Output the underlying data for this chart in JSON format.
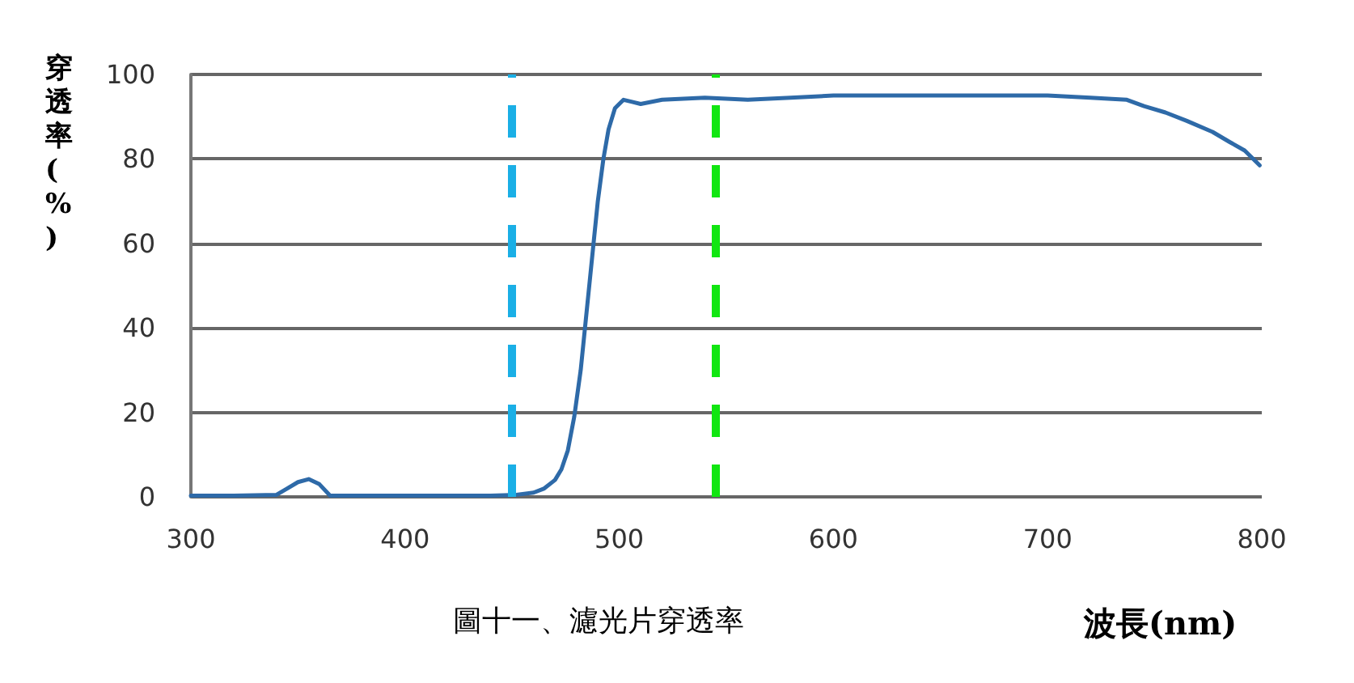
{
  "chart_data": {
    "type": "line",
    "xlabel": "波長(nm)",
    "ylabel": "穿透率(%)",
    "annotations": [
      "圖十一、濾光片穿透率"
    ],
    "series": [
      {
        "color": "#2e6aa8",
        "x": [
          300,
          320,
          340,
          345,
          350,
          355,
          360,
          365,
          380,
          400,
          420,
          440,
          452,
          460,
          465,
          470,
          473,
          476,
          479,
          482,
          484,
          486,
          488,
          490,
          492.6,
          495,
          498,
          502,
          506,
          510,
          520,
          540,
          560,
          580,
          600,
          620,
          640,
          660,
          680,
          700,
          720,
          730,
          737,
          745,
          755,
          765,
          777,
          785,
          792,
          799
        ],
        "values": [
          0.3,
          0.3,
          0.5,
          2,
          3.5,
          4.2,
          3,
          0.3,
          0.3,
          0.3,
          0.3,
          0.3,
          0.5,
          1,
          2,
          4,
          6.5,
          11,
          19,
          30,
          40,
          50,
          60,
          70,
          80,
          87,
          92,
          94,
          93.5,
          93,
          94,
          94.5,
          94,
          94.5,
          95,
          95,
          95,
          95,
          95,
          95,
          94.5,
          94.2,
          94,
          92.5,
          91,
          89,
          86.4,
          84,
          82,
          78.5
        ]
      }
    ],
    "xlim": [
      300,
      800
    ],
    "xticks": [
      300,
      400,
      500,
      600,
      700,
      800
    ],
    "ylim": [
      0,
      100
    ],
    "yticks": [
      0,
      20,
      40,
      60,
      80,
      100
    ],
    "grid": "y",
    "marker": "none",
    "line_style": "solid",
    "ref_lines": [
      {
        "axis": "x",
        "value": 450,
        "color": "#1aafe6",
        "line_style": "dashed"
      },
      {
        "axis": "x",
        "value": 545,
        "color": "#11e611",
        "line_style": "dashed"
      }
    ]
  }
}
